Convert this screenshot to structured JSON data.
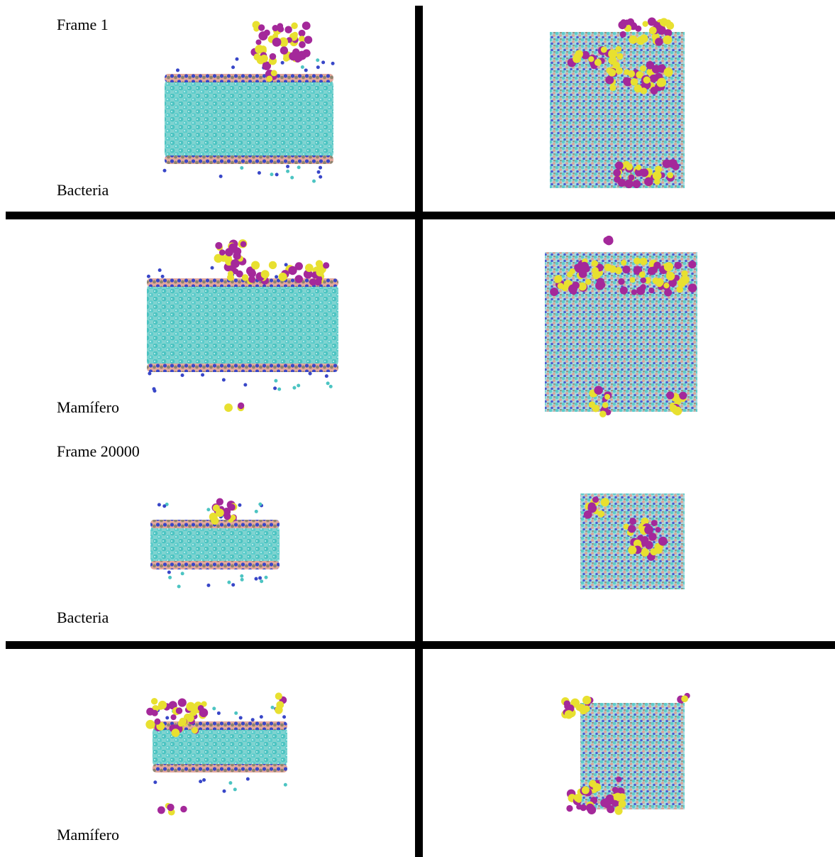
{
  "panels": [
    {
      "frame": "Frame 1",
      "label": "Bacteria"
    },
    {
      "label": "Mamífero"
    },
    {
      "frame": "Frame 20000",
      "label": "Bacteria"
    },
    {
      "label": "Mamífero"
    }
  ]
}
